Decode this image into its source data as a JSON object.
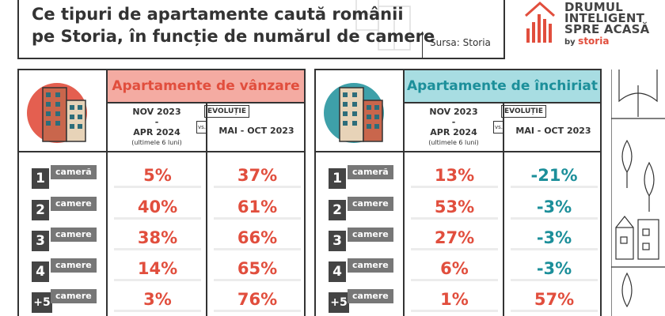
{
  "header": {
    "title_line1": "Ce tipuri de apartamente caută românii",
    "title_line2": "pe Storia, în funcție de numărul de camere",
    "source": "Sursa: Storia"
  },
  "logo": {
    "line1": "DRUMUL",
    "line2": "INTELIGENT",
    "line3": "SPRE ACASĂ",
    "by": "by",
    "brand": "storia",
    "icon": "bar-house-icon"
  },
  "colors": {
    "red": "#e14e3d",
    "pink": "#f4aba2",
    "teal": "#1c8f9a",
    "cyan": "#a8dde2",
    "badge": "#444444"
  },
  "panels": [
    {
      "title": "Apartamente de vânzare",
      "period1_a": "NOV 2023",
      "period1_dash": "-",
      "period1_b": "APR 2024",
      "period1_note": "(ultimele 6 luni)",
      "evolution": "EVOLUȚIE",
      "vs": "vs.",
      "period2": "MAI - OCT 2023",
      "rows": [
        {
          "num": "1",
          "label": "cameră",
          "share": "5%",
          "change": "37%"
        },
        {
          "num": "2",
          "label": "camere",
          "share": "40%",
          "change": "61%"
        },
        {
          "num": "3",
          "label": "camere",
          "share": "38%",
          "change": "66%"
        },
        {
          "num": "4",
          "label": "camere",
          "share": "14%",
          "change": "65%"
        },
        {
          "num": "+5",
          "label": "camere",
          "share": "3%",
          "change": "76%"
        }
      ]
    },
    {
      "title": "Apartamente de închiriat",
      "period1_a": "NOV 2023",
      "period1_dash": "-",
      "period1_b": "APR 2024",
      "period1_note": "(ultimele 6 luni)",
      "evolution": "EVOLUȚIE",
      "vs": "vs.",
      "period2": "MAI - OCT 2023",
      "rows": [
        {
          "num": "1",
          "label": "cameră",
          "share": "13%",
          "change": "-21%"
        },
        {
          "num": "2",
          "label": "camere",
          "share": "53%",
          "change": "-3%"
        },
        {
          "num": "3",
          "label": "camere",
          "share": "27%",
          "change": "-3%"
        },
        {
          "num": "4",
          "label": "camere",
          "share": "6%",
          "change": "-3%"
        },
        {
          "num": "+5",
          "label": "camere",
          "share": "1%",
          "change": "57%"
        }
      ]
    }
  ]
}
